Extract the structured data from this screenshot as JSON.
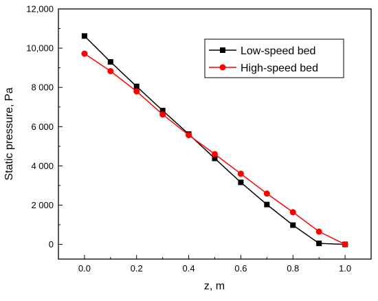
{
  "chart_data": {
    "type": "line",
    "xlabel": "z, m",
    "ylabel": "Static pressure, Pa",
    "xlim": [
      -0.1,
      1.1
    ],
    "ylim": [
      -750,
      12000
    ],
    "x_ticks": [
      0.0,
      0.2,
      0.4,
      0.6,
      0.8,
      1.0
    ],
    "x_tick_labels": [
      "0.0",
      "0.2",
      "0.4",
      "0.6",
      "0.8",
      "1.0"
    ],
    "y_ticks": [
      0,
      2000,
      4000,
      6000,
      8000,
      10000,
      12000
    ],
    "y_tick_labels": [
      "0",
      "2 000",
      "4 000",
      "6 000",
      "8 000",
      "10,000",
      "12,000"
    ],
    "grid": false,
    "legend_position": "top-right",
    "series": [
      {
        "name": "Low-speed bed",
        "color": "#000000",
        "marker": "square",
        "x": [
          0.0,
          0.1,
          0.2,
          0.3,
          0.4,
          0.5,
          0.6,
          0.7,
          0.8,
          0.9,
          1.0
        ],
        "y": [
          10620,
          9300,
          8050,
          6820,
          5620,
          4380,
          3160,
          2030,
          980,
          50,
          0
        ]
      },
      {
        "name": "High-speed bed",
        "color": "#ff0000",
        "marker": "circle",
        "x": [
          0.0,
          0.1,
          0.2,
          0.3,
          0.4,
          0.5,
          0.6,
          0.7,
          0.8,
          0.9,
          1.0
        ],
        "y": [
          9720,
          8830,
          7800,
          6620,
          5570,
          4600,
          3600,
          2590,
          1640,
          650,
          0
        ]
      }
    ]
  }
}
